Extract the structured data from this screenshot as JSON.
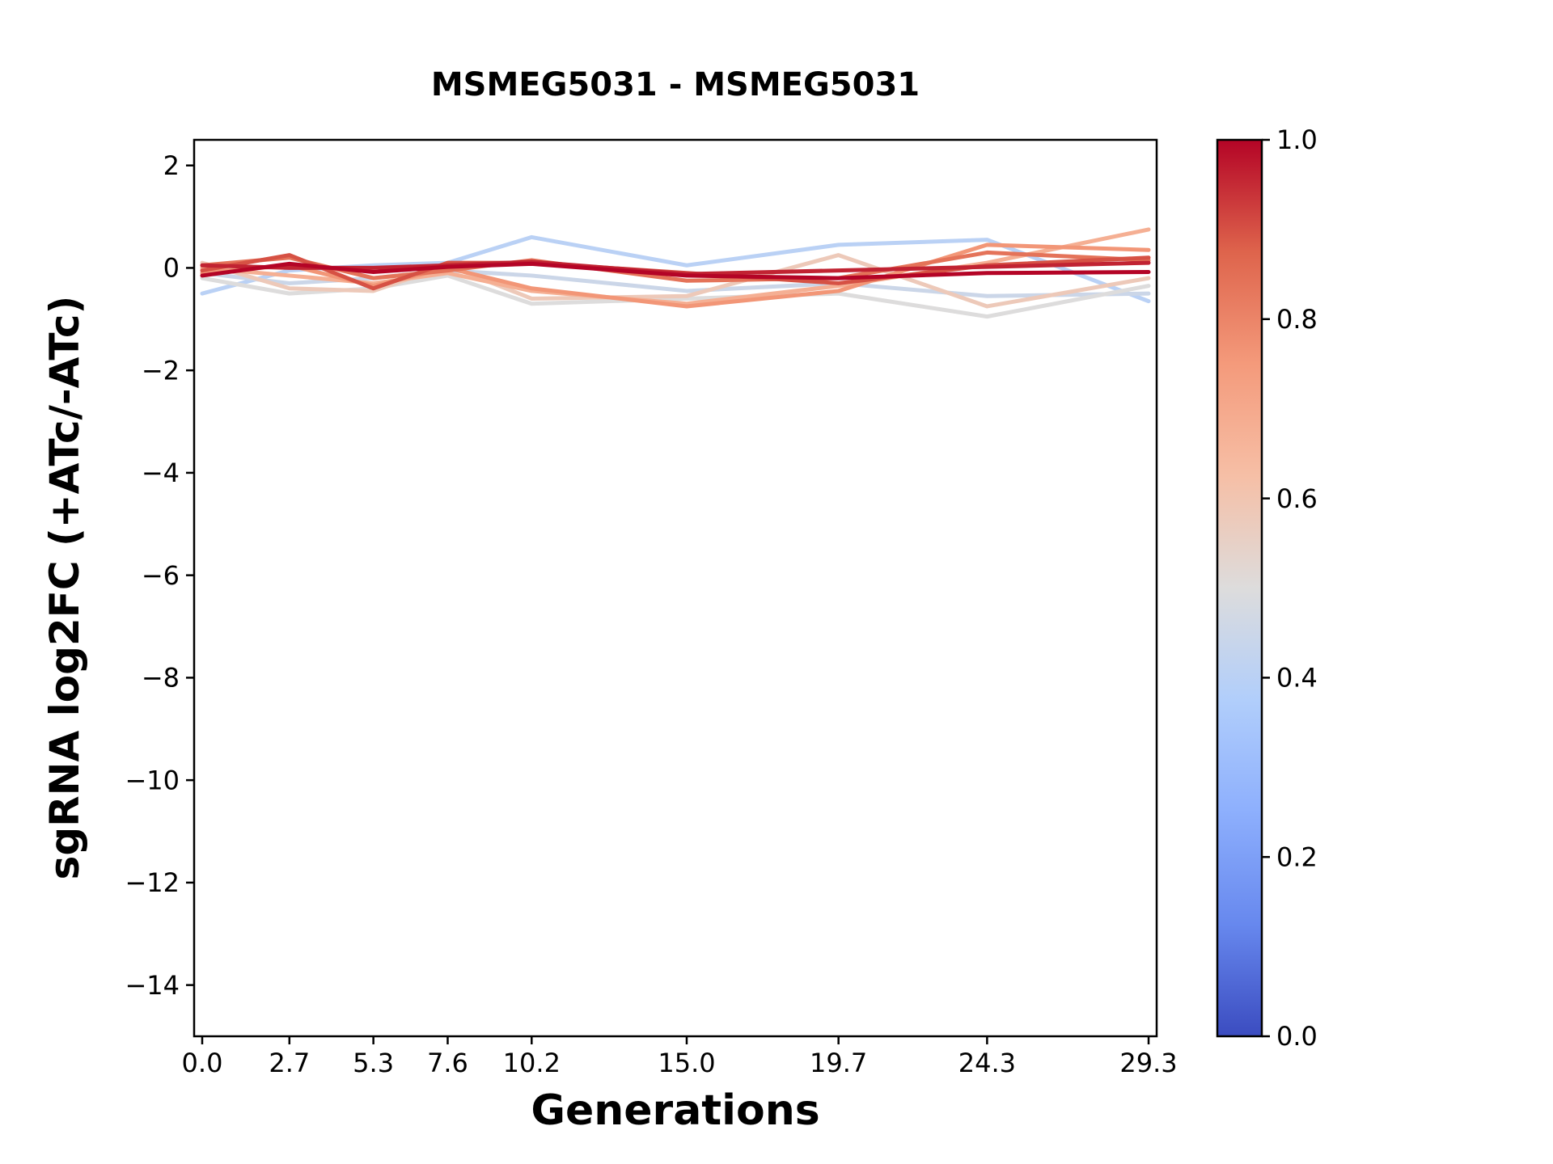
{
  "chart_data": {
    "type": "line",
    "title": "MSMEG5031 - MSMEG5031",
    "xlabel": "Generations",
    "ylabel": "sgRNA log2FC (+ATc/-ATc)",
    "grid": false,
    "background": "#ffffff",
    "axis_color": "#000000",
    "x": [
      0.0,
      2.7,
      5.3,
      7.6,
      10.2,
      15.0,
      19.7,
      24.3,
      29.3
    ],
    "x_tick_labels": [
      "0.0",
      "2.7",
      "5.3",
      "7.6",
      "10.2",
      "15.0",
      "19.7",
      "24.3",
      "29.3"
    ],
    "y_tick_values": [
      2,
      0,
      -2,
      -4,
      -6,
      -8,
      -10,
      -12,
      -14
    ],
    "y_tick_labels": [
      "2",
      "0",
      "−2",
      "−4",
      "−6",
      "−8",
      "−10",
      "−12",
      "−14"
    ],
    "xlim": [
      -0.25,
      29.55
    ],
    "ylim": [
      -15.0,
      2.5
    ],
    "series": [
      {
        "color_value": 0.4,
        "values": [
          -0.5,
          -0.05,
          0.05,
          0.1,
          0.6,
          0.05,
          0.45,
          0.55,
          -0.65
        ]
      },
      {
        "color_value": 0.45,
        "values": [
          -0.1,
          -0.3,
          -0.2,
          -0.05,
          -0.15,
          -0.45,
          -0.3,
          -0.55,
          -0.5
        ]
      },
      {
        "color_value": 0.5,
        "values": [
          -0.2,
          -0.5,
          -0.4,
          -0.15,
          -0.7,
          -0.6,
          -0.5,
          -0.95,
          -0.35
        ]
      },
      {
        "color_value": 0.58,
        "values": [
          0.1,
          -0.4,
          -0.45,
          0.05,
          -0.6,
          -0.55,
          0.25,
          -0.75,
          -0.2
        ]
      },
      {
        "color_value": 0.68,
        "values": [
          0.0,
          -0.15,
          -0.3,
          -0.1,
          -0.45,
          -0.7,
          -0.35,
          0.1,
          0.75
        ]
      },
      {
        "color_value": 0.76,
        "values": [
          -0.1,
          0.05,
          -0.35,
          0.0,
          -0.4,
          -0.75,
          -0.45,
          0.45,
          0.35
        ]
      },
      {
        "color_value": 0.84,
        "values": [
          0.05,
          0.2,
          -0.2,
          -0.05,
          0.15,
          -0.25,
          -0.2,
          0.3,
          0.15
        ]
      },
      {
        "color_value": 0.9,
        "values": [
          -0.05,
          0.25,
          -0.4,
          0.1,
          0.1,
          -0.1,
          -0.3,
          0.05,
          0.2
        ]
      },
      {
        "color_value": 0.96,
        "values": [
          0.05,
          0.0,
          0.0,
          0.05,
          0.12,
          -0.12,
          -0.05,
          0.02,
          0.1
        ]
      },
      {
        "color_value": 1.0,
        "values": [
          -0.15,
          0.08,
          -0.08,
          0.02,
          0.08,
          -0.15,
          -0.2,
          -0.1,
          -0.08
        ]
      }
    ],
    "colorbar": {
      "colormap": "coolwarm",
      "min": 0.0,
      "max": 1.0,
      "tick_values": [
        1.0,
        0.8,
        0.6,
        0.4,
        0.2,
        0.0
      ],
      "tick_labels": [
        "1.0",
        "0.8",
        "0.6",
        "0.4",
        "0.2",
        "0.0"
      ],
      "color_low": "#3b4cc0",
      "color_mid": "#dddcdc",
      "color_high": "#b40426"
    }
  }
}
